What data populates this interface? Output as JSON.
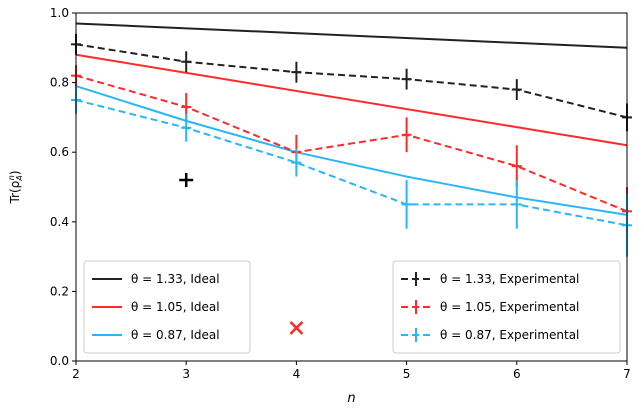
{
  "chart_data": {
    "type": "line",
    "xlabel": "n",
    "ylabel": "Tr(ρ",
    "ylabel_sub": "A",
    "ylabel_sup": "n",
    "ylabel_close": ")",
    "xlim": [
      2,
      7
    ],
    "ylim": [
      0.0,
      1.0
    ],
    "x_ticks": [
      2,
      3,
      4,
      5,
      6,
      7
    ],
    "y_ticks": [
      0.0,
      0.2,
      0.4,
      0.6,
      0.8,
      1.0
    ],
    "x_tick_labels": [
      "2",
      "3",
      "4",
      "5",
      "6",
      "7"
    ],
    "y_tick_labels": [
      "0.0",
      "0.2",
      "0.4",
      "0.6",
      "0.8",
      "1.0"
    ],
    "grid": false,
    "ideal_series": [
      {
        "name": "θ = 1.33, Ideal",
        "color": "#222222",
        "x": [
          2,
          7
        ],
        "y": [
          0.97,
          0.9
        ]
      },
      {
        "name": "θ = 1.05, Ideal",
        "color": "#ff2a2a",
        "x": [
          2,
          7
        ],
        "y": [
          0.88,
          0.62
        ]
      },
      {
        "name": "θ = 0.87, Ideal",
        "color": "#29b6f6",
        "x": [
          2,
          3,
          4,
          5,
          6,
          7
        ],
        "y": [
          0.79,
          0.69,
          0.6,
          0.53,
          0.47,
          0.42
        ]
      }
    ],
    "experimental_series": [
      {
        "name": "θ = 1.33, Experimental",
        "color": "#222222",
        "x": [
          2,
          3,
          4,
          5,
          6,
          7
        ],
        "y": [
          0.91,
          0.86,
          0.83,
          0.81,
          0.78,
          0.7
        ],
        "err": [
          0.03,
          0.03,
          0.03,
          0.03,
          0.03,
          0.04
        ]
      },
      {
        "name": "θ = 1.05, Experimental",
        "color": "#ff2a2a",
        "x": [
          2,
          3,
          4,
          5,
          6,
          7
        ],
        "y": [
          0.82,
          0.73,
          0.6,
          0.65,
          0.56,
          0.43
        ],
        "err": [
          0.03,
          0.04,
          0.05,
          0.05,
          0.06,
          0.07
        ]
      },
      {
        "name": "θ = 0.87, Experimental",
        "color": "#29b6f6",
        "x": [
          2,
          3,
          4,
          5,
          6,
          7
        ],
        "y": [
          0.75,
          0.67,
          0.57,
          0.45,
          0.45,
          0.39
        ],
        "err": [
          0.04,
          0.04,
          0.04,
          0.07,
          0.07,
          0.09
        ]
      }
    ],
    "extra_markers": [
      {
        "kind": "plus",
        "color": "#000000",
        "x": 3.0,
        "y": 0.52
      },
      {
        "kind": "x",
        "color": "#ff2a2a",
        "x": 4.0,
        "y": 0.095
      }
    ],
    "legend_left_position": "lower-left",
    "legend_right_position": "lower-right"
  }
}
